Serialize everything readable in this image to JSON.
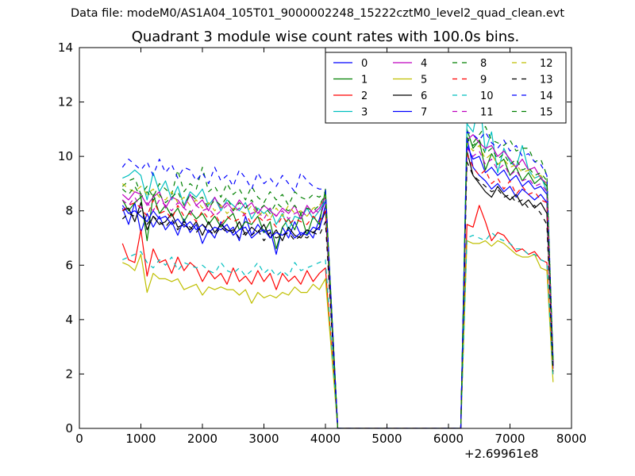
{
  "window": {
    "suptitle": "Data file: modeM0/AS1A04_105T01_9000002248_15222cztM0_level2_quad_clean.evt",
    "title": "Quadrant 3 module wise count rates with 100.0s bins.",
    "x_offset_label": "+2.69961e8"
  },
  "chart_data": {
    "type": "line",
    "title": "Quadrant 3 module wise count rates with 100.0s bins.",
    "xlabel": "",
    "ylabel": "",
    "xlim": [
      0,
      8000
    ],
    "ylim": [
      0,
      14
    ],
    "x_offset": "+2.69961e8",
    "xticks": [
      0,
      1000,
      2000,
      3000,
      4000,
      5000,
      6000,
      7000,
      8000
    ],
    "yticks": [
      0,
      2,
      4,
      6,
      8,
      10,
      12,
      14
    ],
    "grid": false,
    "legend": {
      "placement": "top-right",
      "columns": 4
    },
    "x_segments": {
      "first": {
        "start": 700,
        "step": 100,
        "count": 34
      },
      "drop": [
        4200,
        4300
      ],
      "gap_zero": [
        4300,
        6200
      ],
      "rise": [
        6200,
        6300
      ],
      "second": {
        "start": 6300,
        "step": 100,
        "count": 15
      }
    },
    "series": [
      {
        "name": "0",
        "color": "#0000ff",
        "dash": "solid",
        "first": [
          8.1,
          7.5,
          8.3,
          7.2,
          7.9,
          7.4,
          7.8,
          7.3,
          7.6,
          7.1,
          7.7,
          7.2,
          7.5,
          6.8,
          7.3,
          7.0,
          7.6,
          7.2,
          7.4,
          6.9,
          7.8,
          7.1,
          7.5,
          7.2,
          7.3,
          6.4,
          7.4,
          7.0,
          7.6,
          7.1,
          7.3,
          7.0,
          7.7,
          8.4
        ],
        "second": [
          10.7,
          9.6,
          9.3,
          9.1,
          8.8,
          9.0,
          8.7,
          8.9,
          8.5,
          8.8,
          8.6,
          8.4,
          8.6,
          8.3,
          2.2
        ]
      },
      {
        "name": "1",
        "color": "#008000",
        "dash": "solid",
        "first": [
          8.4,
          8.0,
          8.3,
          8.5,
          6.9,
          8.6,
          7.9,
          8.2,
          7.8,
          8.1,
          7.6,
          8.0,
          7.7,
          7.9,
          7.5,
          7.8,
          7.4,
          7.7,
          7.9,
          7.3,
          7.6,
          7.5,
          7.8,
          7.2,
          7.6,
          6.6,
          7.4,
          7.7,
          7.3,
          7.9,
          7.1,
          7.8,
          7.5,
          8.8
        ],
        "second": [
          11.0,
          10.3,
          10.6,
          9.5,
          10.1,
          9.7,
          9.9,
          9.3,
          9.6,
          9.1,
          9.4,
          9.0,
          9.2,
          8.9,
          2.4
        ]
      },
      {
        "name": "2",
        "color": "#ff0000",
        "dash": "solid",
        "first": [
          6.8,
          6.2,
          6.1,
          7.3,
          5.6,
          6.6,
          6.1,
          6.2,
          5.7,
          6.3,
          5.8,
          6.1,
          5.9,
          5.4,
          5.8,
          5.5,
          5.7,
          5.3,
          5.9,
          5.4,
          5.6,
          5.3,
          5.8,
          5.4,
          5.7,
          5.1,
          5.7,
          5.4,
          5.6,
          5.3,
          5.8,
          5.4,
          5.7,
          5.9
        ],
        "second": [
          7.5,
          7.4,
          8.2,
          7.6,
          6.9,
          7.2,
          7.1,
          6.8,
          6.5,
          6.6,
          6.4,
          6.5,
          6.2,
          6.1,
          2.0
        ]
      },
      {
        "name": "3",
        "color": "#00bfbf",
        "dash": "solid",
        "first": [
          9.2,
          9.3,
          9.5,
          9.3,
          8.4,
          9.4,
          8.7,
          9.1,
          8.4,
          8.9,
          8.2,
          8.7,
          8.5,
          8.8,
          8.2,
          8.5,
          8.0,
          8.4,
          8.2,
          8.0,
          8.3,
          7.7,
          8.1,
          7.9,
          8.1,
          7.5,
          7.9,
          7.3,
          7.8,
          7.7,
          8.1,
          7.7,
          8.0,
          8.4
        ],
        "second": [
          11.2,
          10.9,
          12.1,
          10.2,
          10.9,
          9.4,
          10.3,
          9.8,
          9.6,
          10.4,
          9.5,
          9.2,
          9.3,
          8.7,
          2.6
        ]
      },
      {
        "name": "4",
        "color": "#bf00bf",
        "dash": "solid",
        "first": [
          8.6,
          8.4,
          8.7,
          8.6,
          8.2,
          8.5,
          8.7,
          8.1,
          8.5,
          8.4,
          8.1,
          8.6,
          8.2,
          8.4,
          8.0,
          8.5,
          8.1,
          8.3,
          8.0,
          8.4,
          8.1,
          8.3,
          7.9,
          8.2,
          8.0,
          7.8,
          8.1,
          7.9,
          8.2,
          7.7,
          8.2,
          7.9,
          8.1,
          8.5
        ],
        "second": [
          10.6,
          10.8,
          10.5,
          10.3,
          10.4,
          10.0,
          10.2,
          9.9,
          9.6,
          9.9,
          9.5,
          9.6,
          9.2,
          9.0,
          2.3
        ]
      },
      {
        "name": "5",
        "color": "#bfbf00",
        "dash": "solid",
        "first": [
          6.1,
          6.0,
          5.8,
          6.4,
          5.0,
          5.7,
          5.5,
          5.5,
          5.4,
          5.5,
          5.1,
          5.2,
          5.3,
          4.9,
          5.2,
          5.1,
          5.2,
          5.1,
          5.1,
          4.9,
          5.1,
          4.6,
          5.0,
          4.8,
          4.9,
          4.8,
          5.0,
          4.9,
          5.2,
          5.0,
          5.0,
          5.3,
          5.1,
          5.5
        ],
        "second": [
          6.9,
          6.8,
          6.8,
          6.9,
          6.7,
          6.9,
          6.8,
          6.6,
          6.4,
          6.3,
          6.3,
          6.4,
          5.9,
          5.8,
          1.7
        ]
      },
      {
        "name": "6",
        "color": "#000000",
        "dash": "solid",
        "first": [
          8.0,
          8.1,
          7.6,
          8.3,
          7.3,
          7.8,
          7.5,
          7.6,
          7.9,
          7.4,
          7.5,
          7.3,
          7.6,
          7.1,
          7.6,
          7.2,
          7.5,
          7.3,
          7.2,
          7.6,
          7.1,
          7.4,
          7.2,
          7.5,
          7.0,
          7.3,
          6.9,
          7.4,
          7.1,
          7.0,
          7.3,
          7.2,
          7.4,
          8.0
        ],
        "second": [
          10.2,
          9.3,
          9.0,
          8.7,
          8.5,
          8.9,
          8.6,
          8.4,
          8.6,
          8.2,
          8.4,
          8.1,
          8.3,
          7.9,
          2.3
        ]
      },
      {
        "name": "7",
        "color": "#0000ff",
        "dash": "solid",
        "first": [
          8.2,
          7.9,
          8.0,
          7.8,
          7.6,
          8.0,
          7.7,
          7.8,
          7.5,
          7.7,
          7.4,
          7.6,
          7.3,
          7.5,
          7.2,
          7.4,
          7.3,
          7.5,
          7.1,
          7.3,
          7.4,
          7.0,
          7.2,
          7.3,
          7.0,
          7.2,
          7.1,
          7.3,
          7.0,
          7.2,
          7.1,
          7.4,
          7.3,
          8.2
        ],
        "second": [
          10.4,
          9.9,
          10.0,
          9.4,
          9.6,
          9.3,
          9.5,
          9.1,
          9.3,
          8.9,
          9.1,
          8.8,
          8.9,
          8.6,
          2.3
        ]
      },
      {
        "name": "8",
        "color": "#008000",
        "dash": "dashed",
        "first": [
          8.9,
          9.1,
          9.2,
          8.6,
          8.9,
          8.5,
          9.0,
          8.8,
          8.6,
          9.5,
          8.7,
          9.0,
          8.8,
          9.6,
          8.7,
          8.9,
          8.5,
          9.0,
          8.6,
          8.8,
          8.4,
          8.9,
          8.5,
          8.3,
          8.7,
          8.4,
          8.6,
          8.2,
          8.7,
          8.5,
          8.4,
          8.6,
          8.5,
          8.7
        ],
        "second": [
          10.6,
          10.5,
          10.8,
          11.1,
          10.6,
          10.5,
          10.4,
          10.6,
          10.2,
          10.3,
          10.3,
          9.8,
          9.9,
          9.3,
          2.4
        ]
      },
      {
        "name": "9",
        "color": "#ff0000",
        "dash": "dashed",
        "first": [
          8.0,
          8.2,
          8.3,
          8.1,
          7.8,
          8.4,
          7.9,
          8.0,
          7.7,
          8.2,
          7.8,
          7.9,
          7.6,
          8.0,
          7.7,
          7.9,
          7.5,
          7.8,
          7.6,
          7.7,
          7.9,
          7.5,
          7.8,
          7.6,
          7.7,
          7.4,
          7.8,
          7.5,
          7.7,
          7.6,
          7.5,
          7.8,
          7.6,
          8.0
        ],
        "second": [
          10.1,
          9.6,
          9.3,
          9.5,
          9.0,
          9.2,
          8.8,
          9.1,
          8.6,
          8.9,
          8.6,
          8.7,
          8.4,
          8.3,
          2.2
        ]
      },
      {
        "name": "10",
        "color": "#00bfbf",
        "dash": "dashed",
        "first": [
          6.2,
          6.3,
          6.4,
          6.5,
          6.1,
          5.9,
          6.2,
          6.0,
          6.3,
          5.8,
          6.1,
          6.0,
          5.9,
          6.0,
          5.8,
          5.7,
          6.1,
          5.8,
          5.7,
          5.9,
          5.6,
          5.8,
          6.1,
          5.7,
          5.9,
          5.6,
          5.8,
          5.6,
          6.1,
          5.8,
          5.9,
          6.0,
          6.1,
          6.2
        ],
        "second": [
          7.0,
          7.1,
          7.0,
          6.9,
          7.2,
          7.0,
          6.9,
          6.8,
          6.6,
          6.6,
          6.4,
          6.4,
          6.2,
          6.1,
          1.9
        ]
      },
      {
        "name": "11",
        "color": "#bf00bf",
        "dash": "dashed",
        "first": [
          8.4,
          8.2,
          8.5,
          8.1,
          8.3,
          8.0,
          8.4,
          8.2,
          8.0,
          8.3,
          8.1,
          7.9,
          8.2,
          8.0,
          8.1,
          7.8,
          8.0,
          8.2,
          7.9,
          8.1,
          7.8,
          7.9,
          8.0,
          7.7,
          8.1,
          7.8,
          8.0,
          7.7,
          7.9,
          8.0,
          7.8,
          8.1,
          7.9,
          8.3
        ],
        "second": [
          10.3,
          10.0,
          10.2,
          9.7,
          9.9,
          9.5,
          9.7,
          9.3,
          9.5,
          9.1,
          9.2,
          8.9,
          9.0,
          8.7,
          2.3
        ]
      },
      {
        "name": "12",
        "color": "#bfbf00",
        "dash": "dashed",
        "first": [
          9.0,
          8.8,
          8.7,
          8.9,
          8.6,
          8.8,
          8.5,
          8.4,
          8.7,
          8.3,
          8.5,
          8.2,
          8.4,
          8.1,
          8.3,
          8.0,
          8.2,
          7.9,
          8.1,
          8.0,
          7.9,
          8.2,
          7.8,
          8.0,
          7.7,
          8.1,
          7.8,
          8.2,
          7.9,
          8.0,
          7.8,
          8.1,
          8.2,
          8.5
        ],
        "second": [
          10.5,
          10.2,
          10.4,
          9.9,
          10.1,
          9.7,
          9.9,
          9.6,
          9.7,
          9.4,
          9.5,
          9.2,
          9.3,
          9.0,
          2.5
        ]
      },
      {
        "name": "13",
        "color": "#000000",
        "dash": "dashed",
        "first": [
          7.7,
          7.9,
          7.8,
          8.0,
          7.5,
          7.8,
          7.6,
          7.4,
          7.7,
          7.3,
          7.6,
          7.4,
          7.2,
          7.5,
          7.3,
          7.1,
          7.4,
          7.2,
          7.3,
          7.0,
          7.2,
          7.1,
          7.3,
          6.9,
          7.2,
          7.0,
          7.1,
          7.2,
          6.9,
          7.1,
          7.0,
          7.2,
          7.1,
          7.6
        ],
        "second": [
          9.8,
          9.3,
          9.1,
          8.9,
          8.7,
          8.8,
          8.5,
          8.6,
          8.3,
          8.4,
          8.1,
          8.2,
          7.9,
          7.5,
          2.1
        ]
      },
      {
        "name": "14",
        "color": "#0000ff",
        "dash": "dashed",
        "first": [
          9.6,
          9.9,
          9.7,
          9.5,
          9.8,
          9.3,
          9.9,
          9.4,
          9.7,
          9.2,
          9.6,
          9.5,
          9.1,
          9.4,
          9.0,
          9.6,
          9.1,
          9.3,
          8.9,
          9.5,
          9.2,
          8.8,
          9.4,
          9.0,
          9.2,
          8.9,
          9.3,
          9.0,
          8.7,
          9.4,
          9.1,
          8.9,
          8.8,
          8.8
        ],
        "second": [
          10.9,
          10.8,
          10.6,
          10.9,
          10.5,
          10.3,
          10.6,
          10.2,
          10.4,
          10.0,
          10.1,
          9.8,
          9.7,
          9.3,
          2.4
        ]
      },
      {
        "name": "15",
        "color": "#008000",
        "dash": "dashed",
        "first": [
          8.8,
          8.6,
          8.9,
          8.5,
          8.7,
          8.4,
          8.6,
          8.3,
          8.5,
          8.7,
          8.2,
          8.6,
          8.4,
          8.5,
          8.1,
          8.4,
          8.2,
          8.5,
          8.0,
          8.3,
          8.1,
          8.4,
          8.0,
          8.2,
          7.9,
          8.3,
          8.1,
          8.0,
          8.2,
          7.9,
          8.1,
          8.0,
          8.2,
          8.6
        ],
        "second": [
          10.7,
          10.4,
          10.6,
          10.1,
          10.3,
          9.9,
          10.1,
          9.7,
          9.9,
          9.5,
          9.6,
          9.3,
          9.4,
          9.1,
          2.4
        ]
      }
    ]
  }
}
